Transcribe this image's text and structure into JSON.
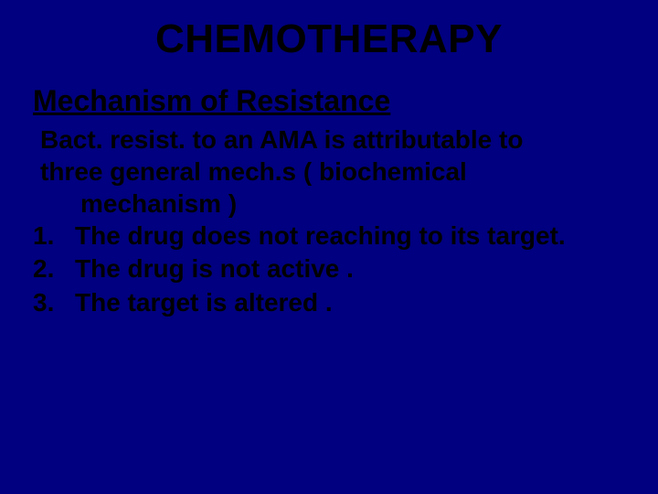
{
  "background_color": "#000080",
  "text_color": "#000000",
  "title": "CHEMOTHERAPY",
  "title_fontsize": 44,
  "subtitle": "Mechanism of Resistance",
  "subtitle_fontsize": 32,
  "intro_line1": "Bact. resist.  to an AMA is attributable to",
  "intro_line2": "three general mech.s ( biochemical",
  "intro_line3": "mechanism )",
  "body_fontsize": 28,
  "items": [
    {
      "num": "1.",
      "text": "The drug does not reaching  to its target."
    },
    {
      "num": "2.",
      "text": " The drug is not active ."
    },
    {
      "num": "3.",
      "text": " The target is altered ."
    }
  ]
}
